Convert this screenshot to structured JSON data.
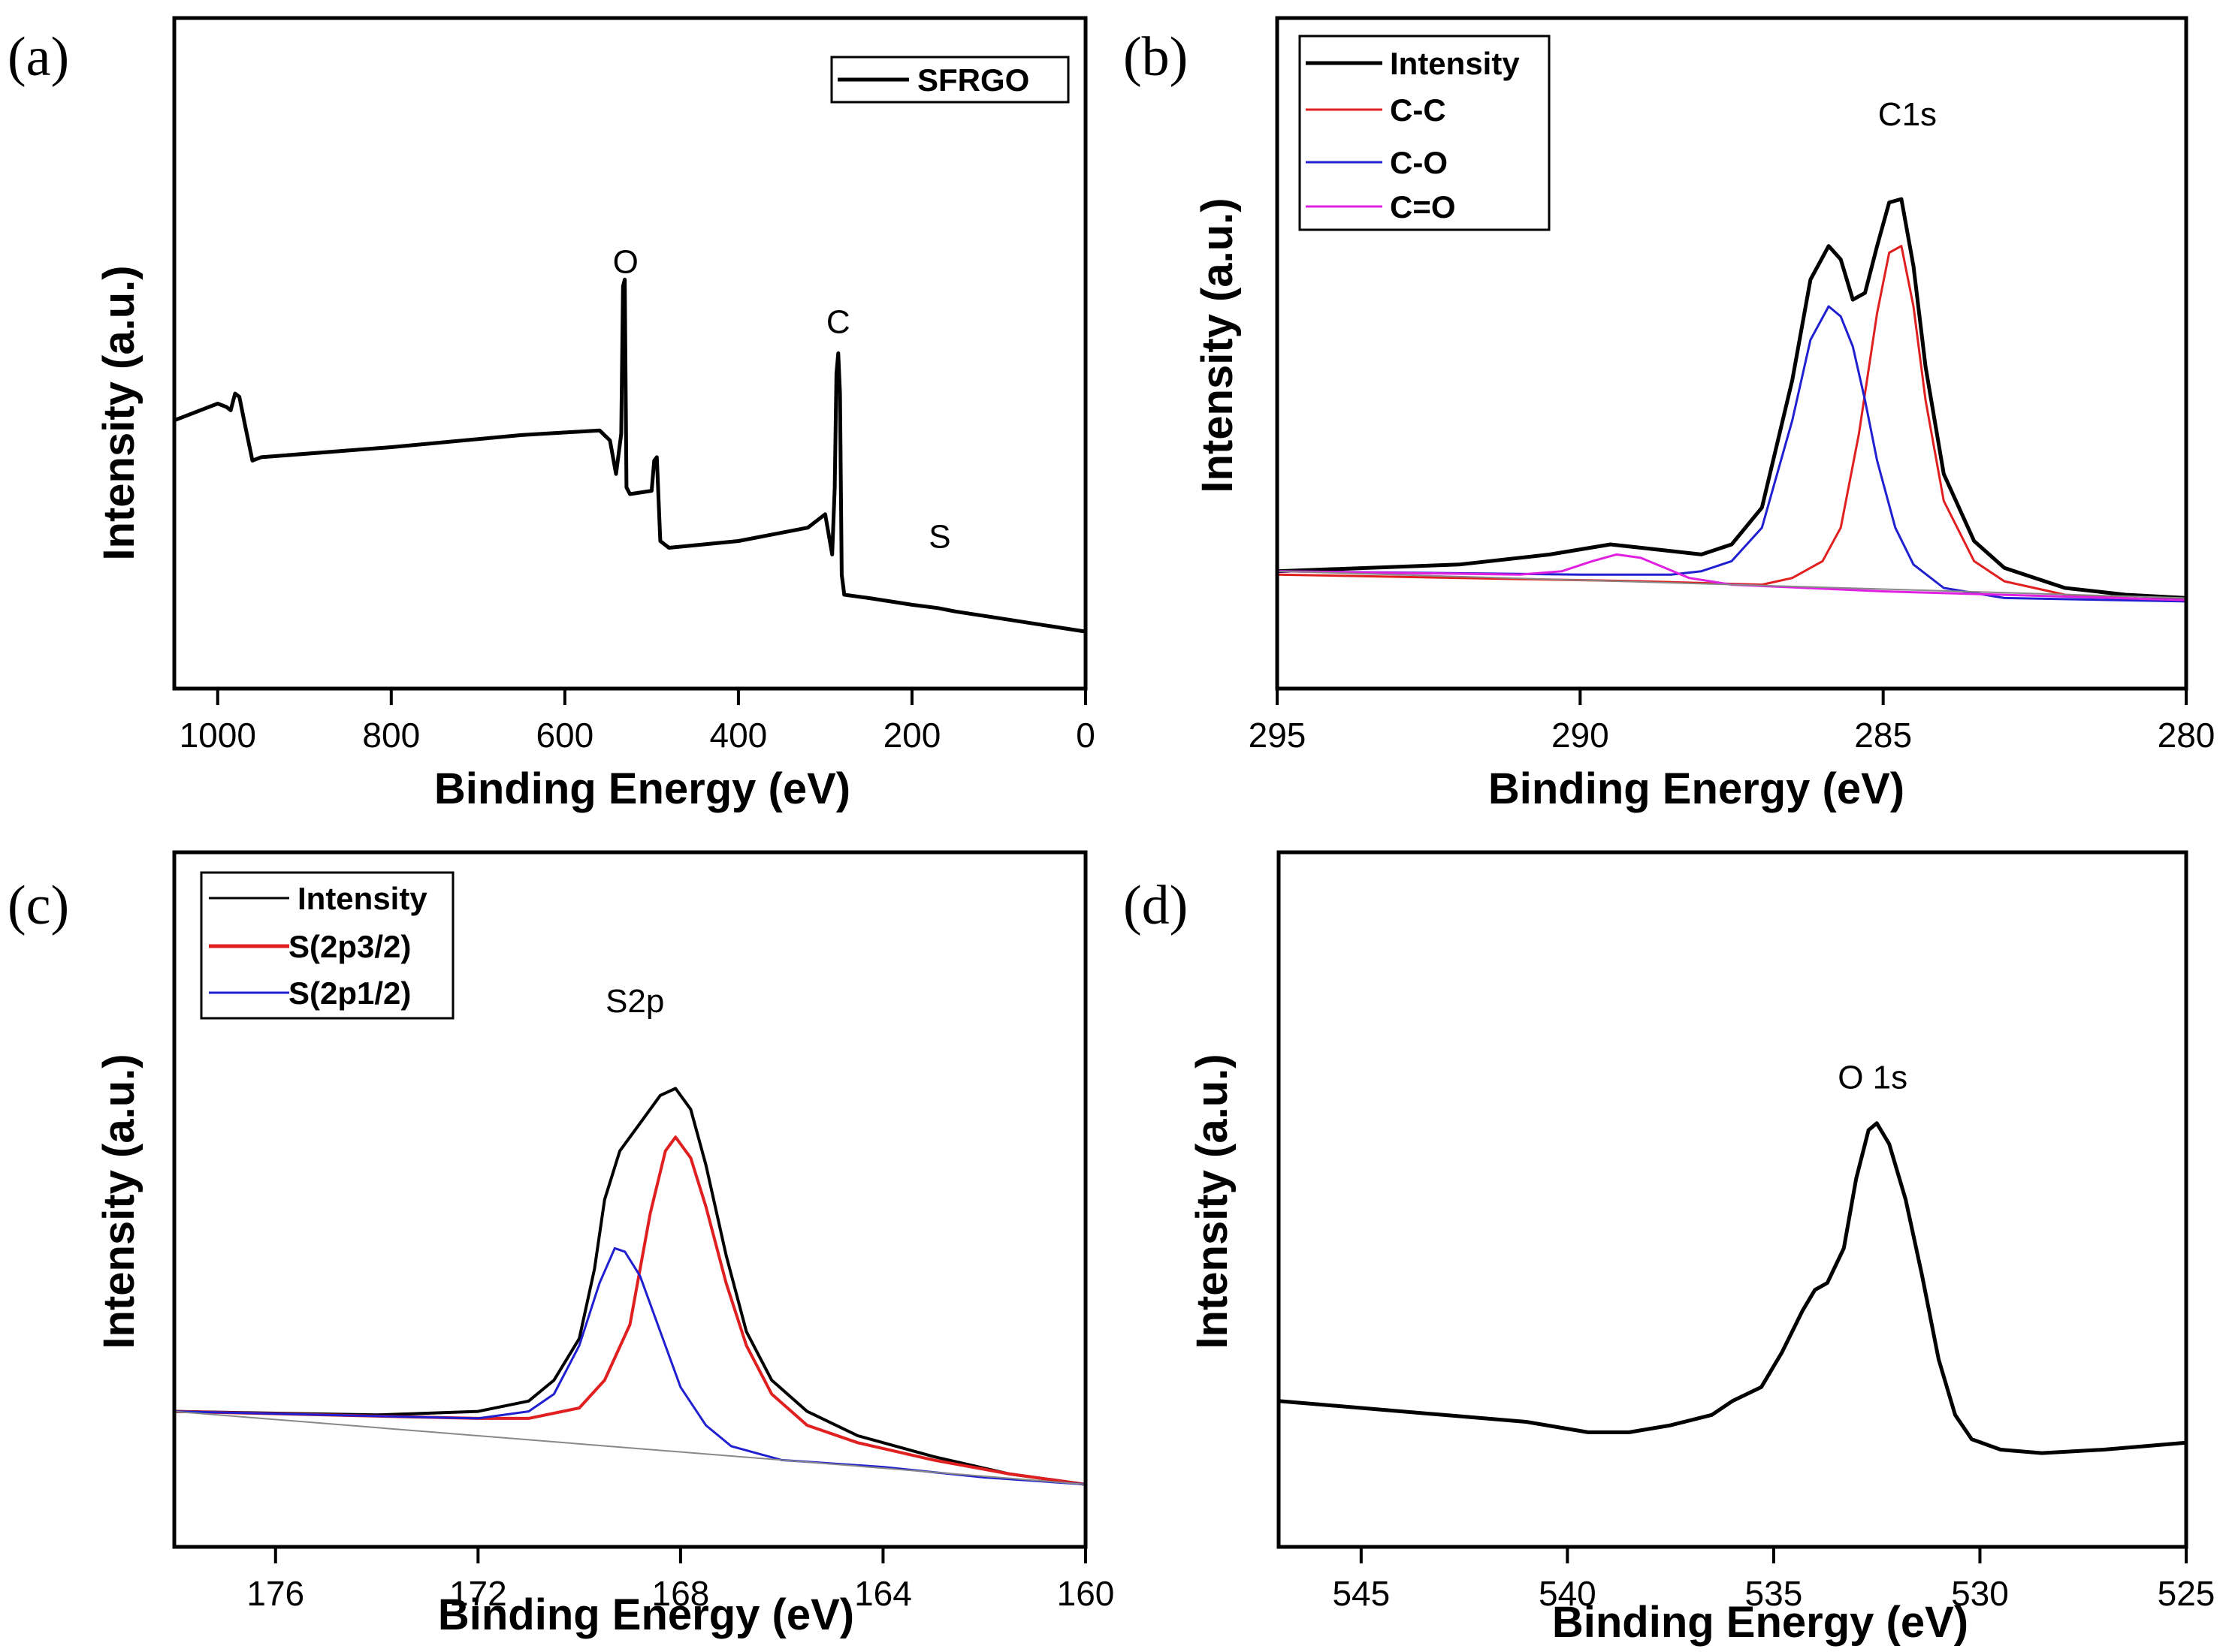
{
  "chart_data": [
    {
      "panel": "(a)",
      "type": "line",
      "xlabel": "Binding Energy (eV)",
      "ylabel": "Intensity (a.u.)",
      "xlim": [
        1050,
        0
      ],
      "ylim": [
        0,
        100
      ],
      "xticks": [
        1000,
        800,
        600,
        400,
        200,
        0
      ],
      "legend": {
        "position": "top-right",
        "entries": [
          "SFRGO"
        ]
      },
      "annotations": [
        {
          "text": "O",
          "x": 530,
          "y": 62
        },
        {
          "text": "C",
          "x": 285,
          "y": 53
        },
        {
          "text": "S",
          "x": 168,
          "y": 21
        }
      ],
      "series": [
        {
          "name": "SFRGO",
          "color": "#000000",
          "width": 5,
          "points": [
            [
              1050,
              40
            ],
            [
              1010,
              42
            ],
            [
              1000,
              42.5
            ],
            [
              990,
              42
            ],
            [
              985,
              41.5
            ],
            [
              980,
              44
            ],
            [
              975,
              43.5
            ],
            [
              968,
              39
            ],
            [
              960,
              34
            ],
            [
              950,
              34.5
            ],
            [
              800,
              36
            ],
            [
              650,
              37.8
            ],
            [
              560,
              38.5
            ],
            [
              548,
              37
            ],
            [
              541,
              32
            ],
            [
              535,
              38
            ],
            [
              533,
              60
            ],
            [
              531,
              61
            ],
            [
              529,
              30
            ],
            [
              525,
              29
            ],
            [
              500,
              29.5
            ],
            [
              497,
              34
            ],
            [
              494,
              34.5
            ],
            [
              490,
              22
            ],
            [
              480,
              21
            ],
            [
              400,
              22
            ],
            [
              320,
              24
            ],
            [
              300,
              26
            ],
            [
              292,
              20
            ],
            [
              289,
              30
            ],
            [
              287,
              47
            ],
            [
              285,
              50
            ],
            [
              283,
              44
            ],
            [
              281,
              17
            ],
            [
              278,
              14
            ],
            [
              250,
              13.5
            ],
            [
              200,
              12.5
            ],
            [
              170,
              12
            ],
            [
              150,
              11.5
            ],
            [
              100,
              10.5
            ],
            [
              50,
              9.5
            ],
            [
              0,
              8.5
            ]
          ]
        }
      ]
    },
    {
      "panel": "(b)",
      "type": "line",
      "xlabel": "Binding Energy (eV)",
      "ylabel": "Intensity (a.u.)",
      "xlim": [
        295,
        280
      ],
      "ylim": [
        0,
        100
      ],
      "xticks": [
        295,
        290,
        285,
        280
      ],
      "legend": {
        "position": "top-left",
        "entries": [
          "Intensity",
          "C-C",
          "C-O",
          "C=O"
        ]
      },
      "annotations": [
        {
          "text": "C1s",
          "x": 284.6,
          "y": 84
        }
      ],
      "series": [
        {
          "name": "Intensity",
          "color": "#000000",
          "width": 5,
          "points": [
            [
              295,
              17.5
            ],
            [
              292,
              18.5
            ],
            [
              290.5,
              20
            ],
            [
              289.5,
              21.5
            ],
            [
              288.5,
              20.5
            ],
            [
              288,
              20
            ],
            [
              287.5,
              21.5
            ],
            [
              287,
              27
            ],
            [
              286.5,
              46
            ],
            [
              286.2,
              61
            ],
            [
              285.9,
              66
            ],
            [
              285.7,
              64
            ],
            [
              285.5,
              58
            ],
            [
              285.3,
              59
            ],
            [
              285.1,
              66
            ],
            [
              284.9,
              72.5
            ],
            [
              284.7,
              73
            ],
            [
              284.5,
              63
            ],
            [
              284.3,
              48
            ],
            [
              284,
              32
            ],
            [
              283.5,
              22
            ],
            [
              283,
              18
            ],
            [
              282,
              15
            ],
            [
              281,
              14
            ],
            [
              280,
              13.5
            ]
          ]
        },
        {
          "name": "C-C",
          "color": "#e02020",
          "width": 3,
          "points": [
            [
              295,
              17
            ],
            [
              289,
              16
            ],
            [
              287,
              15.5
            ],
            [
              286.5,
              16.5
            ],
            [
              286,
              19
            ],
            [
              285.7,
              24
            ],
            [
              285.4,
              38
            ],
            [
              285.1,
              56
            ],
            [
              284.9,
              65
            ],
            [
              284.7,
              66
            ],
            [
              284.5,
              57
            ],
            [
              284.3,
              43
            ],
            [
              284,
              28
            ],
            [
              283.5,
              19
            ],
            [
              283,
              16
            ],
            [
              282,
              14
            ],
            [
              280,
              13
            ]
          ]
        },
        {
          "name": "C-O",
          "color": "#2020d0",
          "width": 3,
          "points": [
            [
              295,
              17.5
            ],
            [
              290,
              17
            ],
            [
              288.5,
              17
            ],
            [
              288,
              17.5
            ],
            [
              287.5,
              19
            ],
            [
              287,
              24
            ],
            [
              286.5,
              40
            ],
            [
              286.2,
              52
            ],
            [
              285.9,
              57
            ],
            [
              285.7,
              55.5
            ],
            [
              285.5,
              51
            ],
            [
              285.3,
              43
            ],
            [
              285.1,
              34
            ],
            [
              284.8,
              24
            ],
            [
              284.5,
              18.5
            ],
            [
              284,
              15
            ],
            [
              283,
              13.5
            ],
            [
              280,
              13
            ]
          ]
        },
        {
          "name": "C=O",
          "color": "#e020e0",
          "width": 3,
          "points": [
            [
              295,
              17.5
            ],
            [
              291,
              17
            ],
            [
              290.3,
              17.5
            ],
            [
              289.8,
              19
            ],
            [
              289.4,
              20
            ],
            [
              289,
              19.5
            ],
            [
              288.6,
              18
            ],
            [
              288.2,
              16.5
            ],
            [
              287.5,
              15.5
            ],
            [
              285,
              14.5
            ],
            [
              280,
              13.2
            ]
          ]
        },
        {
          "name": "baseline",
          "color": "#888888",
          "width": 2,
          "points": [
            [
              295,
              17.5
            ],
            [
              280,
              13.5
            ]
          ]
        }
      ]
    },
    {
      "panel": "(c)",
      "type": "line",
      "xlabel": "Binding Energy (eV)",
      "ylabel": "Intensity (a.u.)",
      "xlim": [
        178,
        160
      ],
      "ylim": [
        0,
        100
      ],
      "xticks": [
        176,
        172,
        168,
        164,
        160
      ],
      "legend": {
        "position": "top-left",
        "entries": [
          "Intensity",
          "S(2p3/2)",
          "S(2p1/2)"
        ]
      },
      "annotations": [
        {
          "text": "S2p",
          "x": 168.9,
          "y": 77
        }
      ],
      "series": [
        {
          "name": "Intensity",
          "color": "#000000",
          "width": 4,
          "points": [
            [
              178,
              19.5
            ],
            [
              174,
              19
            ],
            [
              172,
              19.5
            ],
            [
              171,
              21
            ],
            [
              170.5,
              24
            ],
            [
              170,
              30
            ],
            [
              169.7,
              40
            ],
            [
              169.5,
              50
            ],
            [
              169.2,
              57
            ],
            [
              168.8,
              61
            ],
            [
              168.4,
              65
            ],
            [
              168.1,
              66
            ],
            [
              167.8,
              63
            ],
            [
              167.5,
              55
            ],
            [
              167.1,
              42
            ],
            [
              166.7,
              31
            ],
            [
              166.2,
              24
            ],
            [
              165.5,
              19.5
            ],
            [
              164.5,
              16
            ],
            [
              163,
              13
            ],
            [
              161.5,
              10.5
            ],
            [
              160,
              9
            ]
          ]
        },
        {
          "name": "S(2p3/2)",
          "color": "#e02020",
          "width": 4,
          "points": [
            [
              178,
              19.5
            ],
            [
              172,
              18.5
            ],
            [
              171,
              18.5
            ],
            [
              170,
              20
            ],
            [
              169.5,
              24
            ],
            [
              169,
              32
            ],
            [
              168.6,
              48
            ],
            [
              168.3,
              57
            ],
            [
              168.1,
              59
            ],
            [
              167.8,
              56
            ],
            [
              167.5,
              49
            ],
            [
              167.1,
              38
            ],
            [
              166.7,
              29
            ],
            [
              166.2,
              22
            ],
            [
              165.5,
              17.5
            ],
            [
              164.5,
              15
            ],
            [
              163,
              12.5
            ],
            [
              161.5,
              10.5
            ],
            [
              160,
              9
            ]
          ]
        },
        {
          "name": "S(2p1/2)",
          "color": "#2020d0",
          "width": 3,
          "points": [
            [
              178,
              19.5
            ],
            [
              172,
              18.5
            ],
            [
              171,
              19.5
            ],
            [
              170.5,
              22
            ],
            [
              170,
              29
            ],
            [
              169.6,
              38
            ],
            [
              169.3,
              43
            ],
            [
              169.1,
              42.5
            ],
            [
              168.8,
              39
            ],
            [
              168.4,
              31
            ],
            [
              168,
              23
            ],
            [
              167.5,
              17.5
            ],
            [
              167,
              14.5
            ],
            [
              166,
              12.5
            ],
            [
              164,
              11.5
            ],
            [
              162,
              10
            ],
            [
              160,
              9
            ]
          ]
        },
        {
          "name": "baseline",
          "color": "#888888",
          "width": 2,
          "points": [
            [
              178,
              19.5
            ],
            [
              160,
              9
            ]
          ]
        }
      ]
    },
    {
      "panel": "(d)",
      "type": "line",
      "xlabel": "Binding Energy (eV)",
      "ylabel": "Intensity (a.u.)",
      "xlim": [
        547,
        525
      ],
      "ylim": [
        0,
        100
      ],
      "xticks": [
        545,
        540,
        535,
        530,
        525
      ],
      "annotations": [
        {
          "text": "O 1s",
          "x": 532.6,
          "y": 66
        }
      ],
      "series": [
        {
          "name": "O 1s",
          "color": "#000000",
          "width": 5,
          "points": [
            [
              547,
              21
            ],
            [
              545,
              20
            ],
            [
              543,
              19
            ],
            [
              541,
              18
            ],
            [
              539.5,
              16.5
            ],
            [
              538.5,
              16.5
            ],
            [
              537.5,
              17.5
            ],
            [
              536.5,
              19
            ],
            [
              536,
              21
            ],
            [
              535.3,
              23
            ],
            [
              534.8,
              28
            ],
            [
              534.3,
              34
            ],
            [
              534,
              37
            ],
            [
              533.7,
              38
            ],
            [
              533.3,
              43
            ],
            [
              533,
              53
            ],
            [
              532.7,
              60
            ],
            [
              532.5,
              61
            ],
            [
              532.2,
              58
            ],
            [
              531.8,
              50
            ],
            [
              531.4,
              39
            ],
            [
              531,
              27
            ],
            [
              530.6,
              19
            ],
            [
              530.2,
              15.5
            ],
            [
              529.5,
              14
            ],
            [
              528.5,
              13.5
            ],
            [
              527,
              14
            ],
            [
              526,
              14.5
            ],
            [
              525,
              15
            ]
          ]
        }
      ]
    }
  ]
}
